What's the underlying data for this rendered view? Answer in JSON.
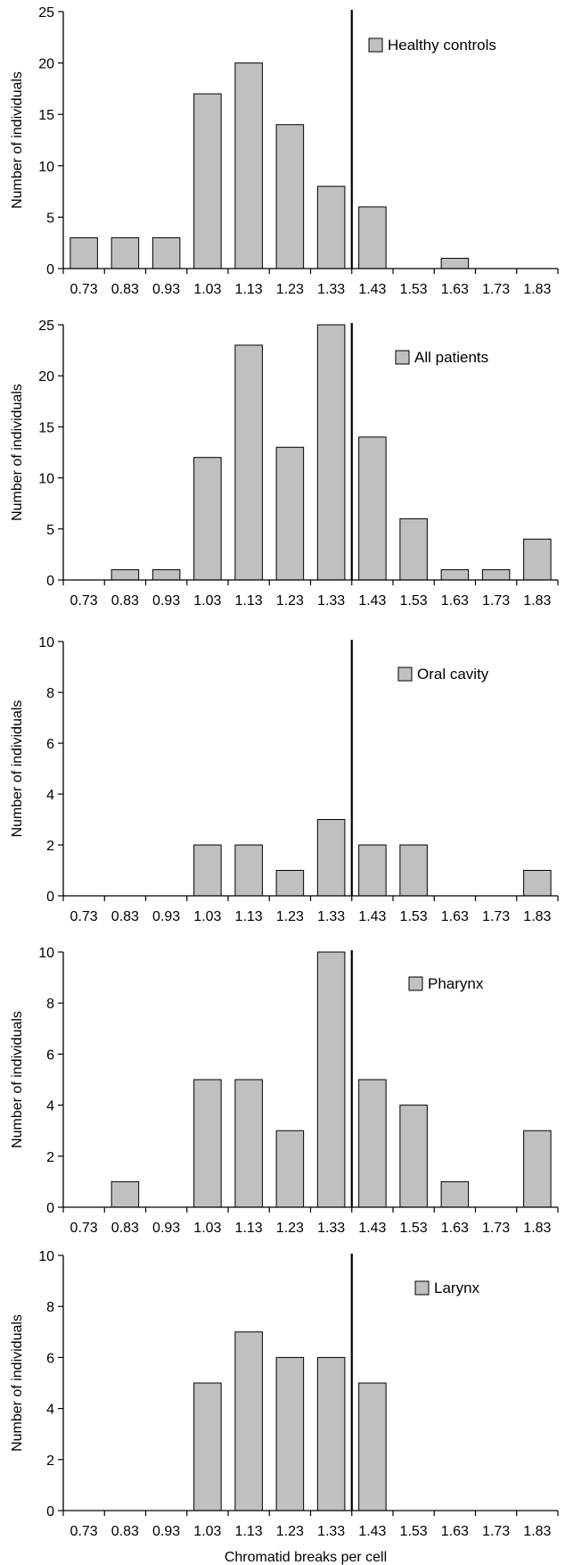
{
  "figure": {
    "xlabel": "Chromatid breaks per cell"
  },
  "chart_data": [
    {
      "type": "bar",
      "categories": [
        "0.73",
        "0.83",
        "0.93",
        "1.03",
        "1.13",
        "1.23",
        "1.33",
        "1.43",
        "1.53",
        "1.63",
        "1.73",
        "1.83"
      ],
      "values": [
        3,
        3,
        3,
        17,
        20,
        14,
        8,
        6,
        0,
        1,
        0,
        0
      ],
      "legend": "Healthy controls",
      "ylabel": "Number of individuals",
      "ylim": [
        0,
        25
      ],
      "yticks": [
        "0",
        "5",
        "10",
        "15",
        "20",
        "25"
      ],
      "threshold_x": 1.38,
      "bar_color": "#c0c0c0",
      "legend_position": "top-right",
      "grid": false
    },
    {
      "type": "bar",
      "categories": [
        "0.73",
        "0.83",
        "0.93",
        "1.03",
        "1.13",
        "1.23",
        "1.33",
        "1.43",
        "1.53",
        "1.63",
        "1.73",
        "1.83"
      ],
      "values": [
        0,
        1,
        1,
        12,
        23,
        13,
        25,
        14,
        6,
        1,
        1,
        4
      ],
      "legend": "All patients",
      "ylabel": "Number of individuals",
      "ylim": [
        0,
        25
      ],
      "yticks": [
        "0",
        "5",
        "10",
        "15",
        "20",
        "25"
      ],
      "threshold_x": 1.38,
      "bar_color": "#c0c0c0",
      "legend_position": "top-right",
      "grid": false
    },
    {
      "type": "bar",
      "categories": [
        "0.73",
        "0.83",
        "0.93",
        "1.03",
        "1.13",
        "1.23",
        "1.33",
        "1.43",
        "1.53",
        "1.63",
        "1.73",
        "1.83"
      ],
      "values": [
        0,
        0,
        0,
        2,
        2,
        1,
        3,
        2,
        2,
        0,
        0,
        1
      ],
      "legend": "Oral cavity",
      "ylabel": "Number of individuals",
      "ylim": [
        0,
        10
      ],
      "yticks": [
        "0",
        "2",
        "4",
        "6",
        "8",
        "10"
      ],
      "threshold_x": 1.38,
      "bar_color": "#c0c0c0",
      "legend_position": "top-right",
      "grid": false
    },
    {
      "type": "bar",
      "categories": [
        "0.73",
        "0.83",
        "0.93",
        "1.03",
        "1.13",
        "1.23",
        "1.33",
        "1.43",
        "1.53",
        "1.63",
        "1.73",
        "1.83"
      ],
      "values": [
        0,
        1,
        0,
        5,
        5,
        3,
        10,
        5,
        4,
        1,
        0,
        3
      ],
      "legend": "Pharynx",
      "ylabel": "Number of individuals",
      "ylim": [
        0,
        10
      ],
      "yticks": [
        "0",
        "2",
        "4",
        "6",
        "8",
        "10"
      ],
      "threshold_x": 1.38,
      "bar_color": "#c0c0c0",
      "legend_position": "top-right",
      "grid": false
    },
    {
      "type": "bar",
      "categories": [
        "0.73",
        "0.83",
        "0.93",
        "1.03",
        "1.13",
        "1.23",
        "1.33",
        "1.43",
        "1.53",
        "1.63",
        "1.73",
        "1.83"
      ],
      "values": [
        0,
        0,
        0,
        5,
        7,
        6,
        6,
        5,
        0,
        0,
        0,
        0
      ],
      "legend": "Larynx",
      "ylabel": "Number of individuals",
      "ylim": [
        0,
        10
      ],
      "yticks": [
        "0",
        "2",
        "4",
        "6",
        "8",
        "10"
      ],
      "threshold_x": 1.38,
      "bar_color": "#c0c0c0",
      "legend_position": "top-right",
      "grid": false
    }
  ]
}
